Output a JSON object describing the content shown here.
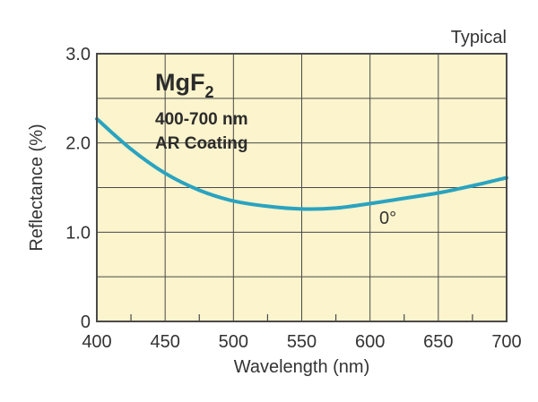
{
  "chart_data": {
    "type": "line",
    "title": "",
    "xlabel": "Wavelength (nm)",
    "ylabel": "Reflectance (%)",
    "xlim": [
      400,
      700
    ],
    "ylim": [
      0,
      3.0
    ],
    "x_ticks": [
      "400",
      "450",
      "500",
      "550",
      "600",
      "650",
      "700"
    ],
    "y_ticks": [
      "0",
      "1.0",
      "2.0",
      "3.0"
    ],
    "grid": true,
    "note": "Typical",
    "annotation": {
      "material": "MgF",
      "subscript": "2",
      "range": "400-700 nm",
      "coating": "AR Coating"
    },
    "series": [
      {
        "name": "0°",
        "color": "#2aa3c0",
        "x": [
          400,
          425,
          450,
          475,
          500,
          525,
          550,
          575,
          600,
          625,
          650,
          675,
          700
        ],
        "y": [
          2.27,
          1.93,
          1.66,
          1.47,
          1.35,
          1.29,
          1.26,
          1.27,
          1.32,
          1.38,
          1.44,
          1.52,
          1.61
        ]
      }
    ],
    "colors": {
      "plot_background": "#fbf4cc",
      "grid": "#4a4a4a",
      "text": "#333333"
    }
  }
}
